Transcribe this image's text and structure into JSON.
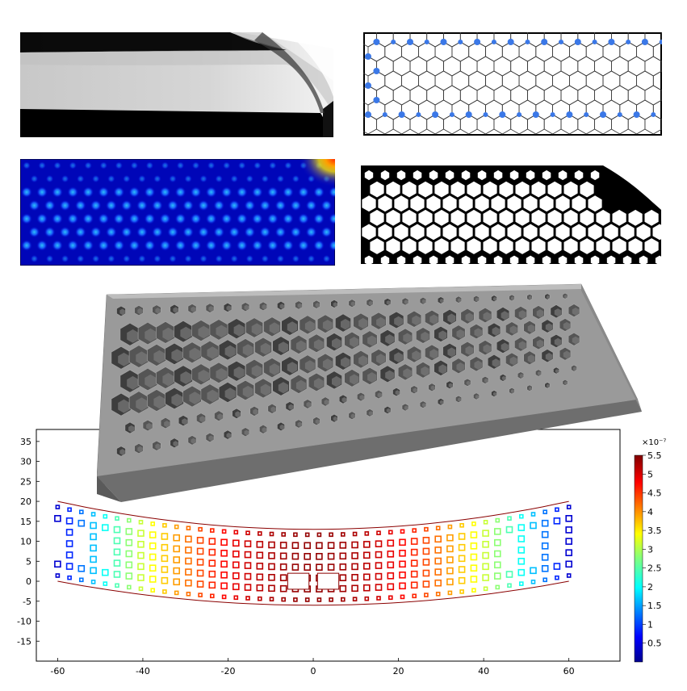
{
  "figure": {
    "panels": [
      {
        "name": "density-map",
        "colormap": "grayscale"
      },
      {
        "name": "hexagonal-lattice-design",
        "node_color": "#3b78e7"
      },
      {
        "name": "stress-heatmap",
        "colormap": "jet"
      },
      {
        "name": "binary-topology",
        "colors": [
          "#000000",
          "#ffffff"
        ]
      },
      {
        "name": "3d-beam-render",
        "color": "#999999"
      }
    ]
  },
  "plot": {
    "x_ticks": [
      "-60",
      "-40",
      "-20",
      "0",
      "20",
      "40",
      "60"
    ],
    "y_ticks": [
      "35",
      "30",
      "25",
      "20",
      "15",
      "10",
      "5",
      "0",
      "-5",
      "-10",
      "-15"
    ],
    "xlim": [
      -65,
      72
    ],
    "ylim": [
      -20,
      38
    ],
    "colorbar": {
      "exponent_label": "×10⁻⁷",
      "ticks": [
        "5.5",
        "5",
        "4.5",
        "4",
        "3.5",
        "3",
        "2.5",
        "2",
        "1.5",
        "1",
        "0.5"
      ],
      "range": [
        0,
        5.5
      ],
      "colormap": "jet"
    }
  },
  "chart_data": {
    "type": "heatmap",
    "title": "",
    "xlabel": "",
    "ylabel": "",
    "xlim": [
      -65,
      72
    ],
    "ylim": [
      -20,
      38
    ],
    "colorbar_range": [
      0,
      5.5e-07
    ],
    "deformed_beam": {
      "x_range": [
        -60,
        60
      ],
      "top_y_at_ends": 20,
      "top_y_at_center": 13,
      "bottom_y_at_ends": 0,
      "bottom_y_at_center": -6
    },
    "grid": false
  }
}
